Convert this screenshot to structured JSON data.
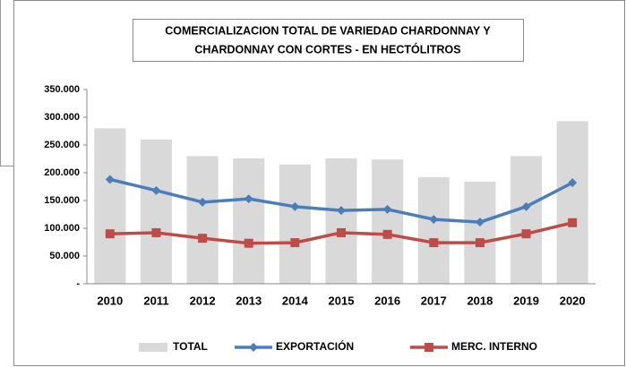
{
  "chart_data": {
    "type": "combo",
    "title": [
      "COMERCIALIZACION TOTAL DE VARIEDAD CHARDONNAY  Y",
      "CHARDONNAY CON CORTES - EN HECTÓLITROS"
    ],
    "categories": [
      "2010",
      "2011",
      "2012",
      "2013",
      "2014",
      "2015",
      "2016",
      "2017",
      "2018",
      "2019",
      "2020"
    ],
    "series": [
      {
        "name": "TOTAL",
        "type": "bar",
        "color": "#d9d9d9",
        "values": [
          280000,
          260000,
          230000,
          226000,
          215000,
          226000,
          224000,
          192000,
          184000,
          230000,
          293000
        ]
      },
      {
        "name": "EXPORTACIÓN",
        "type": "line",
        "marker": "diamond",
        "color": "#4a7ebb",
        "values": [
          188000,
          168000,
          147000,
          153000,
          139000,
          132000,
          134000,
          116000,
          111000,
          139000,
          182000
        ]
      },
      {
        "name": "MERC. INTERNO",
        "type": "line",
        "marker": "square",
        "color": "#be4b48",
        "values": [
          90000,
          92000,
          82000,
          73000,
          74000,
          92000,
          89000,
          74000,
          74000,
          90000,
          110000
        ]
      }
    ],
    "ylim": [
      0,
      350000
    ],
    "yticks": [
      {
        "value": 0,
        "label": "-"
      },
      {
        "value": 50000,
        "label": "50.000"
      },
      {
        "value": 100000,
        "label": "100.000"
      },
      {
        "value": 150000,
        "label": "150.000"
      },
      {
        "value": 200000,
        "label": "200.000"
      },
      {
        "value": 250000,
        "label": "250.000"
      },
      {
        "value": 300000,
        "label": "300.000"
      },
      {
        "value": 350000,
        "label": "350.000"
      }
    ],
    "grid": false,
    "legend": "bottom"
  }
}
